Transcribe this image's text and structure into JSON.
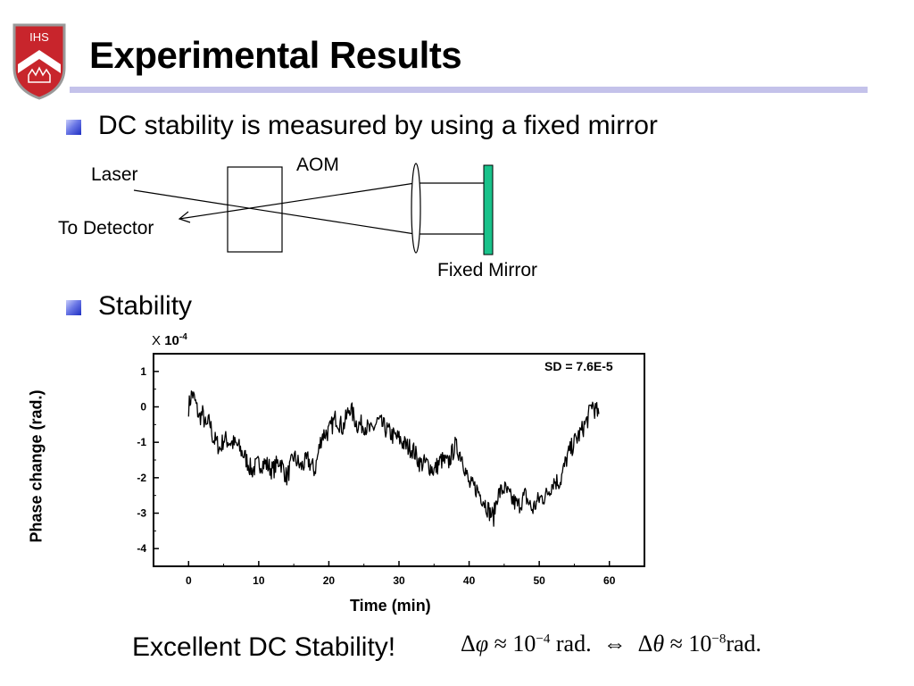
{
  "logo": {
    "text": "IHS",
    "colors": {
      "shield": "#c8252c",
      "chevron": "#ffffff",
      "crown": "#c8252c"
    }
  },
  "header": {
    "title": "Experimental Results",
    "rule_color": "#c4c2ea"
  },
  "bullets": [
    {
      "text": "DC stability is measured by using a fixed mirror"
    },
    {
      "text": "Stability"
    }
  ],
  "diagram": {
    "laser": "Laser",
    "aom": "AOM",
    "to_detector": "To Detector",
    "fixed_mirror": "Fixed Mirror",
    "mirror_color": "#19c28a"
  },
  "chart_data": {
    "type": "line",
    "xlabel": "Time (min)",
    "ylabel": "Phase change (rad.)",
    "y_multiplier": {
      "prefix": "X",
      "base": "10",
      "exponent": "-4"
    },
    "annotation": "SD = 7.6E-5",
    "xlim": [
      -5,
      65
    ],
    "ylim": [
      -4.5,
      1.5
    ],
    "x_ticks": [
      0,
      10,
      20,
      30,
      40,
      50,
      60
    ],
    "y_ticks": [
      1,
      0,
      -1,
      -2,
      -3,
      -4
    ],
    "grid": false,
    "series": [
      {
        "color": "#000000",
        "x": [
          0,
          0.5,
          1,
          1.5,
          2,
          2.5,
          3,
          3.5,
          4,
          4.5,
          5,
          6,
          7,
          8,
          9,
          10,
          11,
          12,
          13,
          14,
          15,
          16,
          17,
          18,
          19,
          20,
          21,
          22,
          23,
          24,
          25,
          26,
          27,
          28,
          29,
          30,
          31,
          32,
          33,
          34,
          35,
          36,
          37,
          38,
          39,
          40,
          41,
          42,
          43,
          43.5,
          44,
          45,
          46,
          47,
          48,
          49,
          50,
          51,
          52,
          53,
          54,
          55,
          56,
          57,
          57.5,
          58,
          58.5
        ],
        "y": [
          0,
          0.4,
          0.1,
          -0.3,
          -0.2,
          -0.6,
          -0.4,
          -0.9,
          -1.0,
          -1.2,
          -0.9,
          -1.0,
          -1.1,
          -1.4,
          -1.8,
          -1.6,
          -1.6,
          -1.8,
          -1.5,
          -2.0,
          -1.4,
          -1.7,
          -1.5,
          -1.8,
          -0.8,
          -0.7,
          -0.3,
          -0.6,
          0.0,
          -0.5,
          -0.5,
          -0.7,
          -0.4,
          -0.6,
          -0.8,
          -0.9,
          -1.1,
          -1.2,
          -1.6,
          -1.6,
          -1.8,
          -1.5,
          -1.6,
          -1.1,
          -1.4,
          -2.2,
          -2.3,
          -2.6,
          -3.0,
          -3.1,
          -2.5,
          -2.3,
          -2.6,
          -2.8,
          -2.5,
          -2.9,
          -2.6,
          -2.5,
          -2.1,
          -2.1,
          -1.4,
          -1.0,
          -0.7,
          -0.3,
          0.1,
          -0.1,
          -0.2
        ]
      }
    ]
  },
  "conclusion": {
    "text": "Excellent DC Stability!",
    "formula": {
      "dphi": "Δ",
      "phi": "φ",
      "approx": "≈",
      "val1": "10",
      "exp1": "−4",
      "unit1": " rad.",
      "iff": "⇔",
      "dtheta": "Δ",
      "theta": "θ",
      "val2": "10",
      "exp2": "−8",
      "unit2": "rad."
    }
  }
}
